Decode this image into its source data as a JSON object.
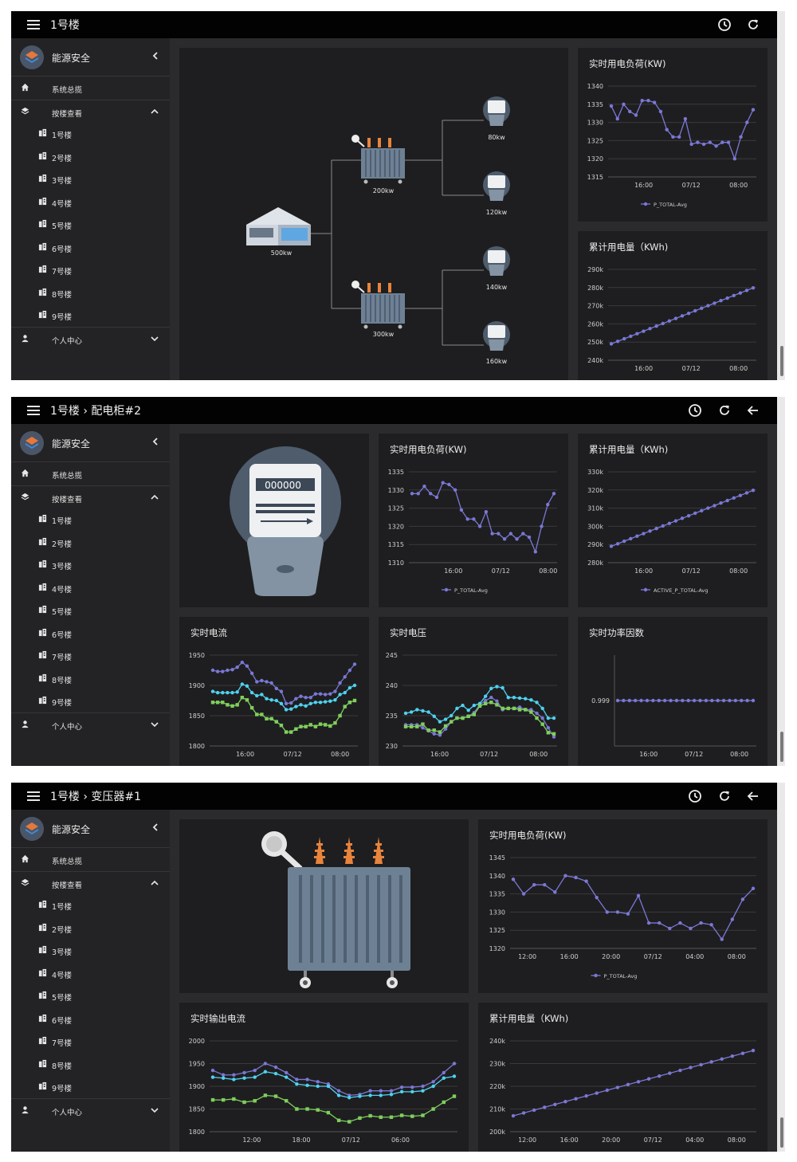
{
  "sidebar": {
    "brand": "能源安全",
    "items": [
      {
        "label": "系统总揽"
      },
      {
        "label": "按楼查看"
      },
      {
        "label": "1号楼"
      },
      {
        "label": "2号楼"
      },
      {
        "label": "3号楼"
      },
      {
        "label": "4号楼"
      },
      {
        "label": "5号楼"
      },
      {
        "label": "6号楼"
      },
      {
        "label": "7号楼"
      },
      {
        "label": "8号楼"
      },
      {
        "label": "9号楼"
      },
      {
        "label": "个人中心"
      }
    ]
  },
  "screens": [
    {
      "title": "1号楼",
      "diagram": {
        "building_label": "500kw",
        "transformers": [
          "200kw",
          "300kw"
        ],
        "meters": [
          "80kw",
          "120kw",
          "140kw",
          "160kw"
        ]
      },
      "panels": {
        "load_title": "实时用电负荷(KW)",
        "energy_title": "累计用电量（KWh)"
      }
    },
    {
      "title": "1号楼 › 配电柜#2",
      "meter_reading": "000000",
      "panels": {
        "load_title": "实时用电负荷(KW)",
        "energy_title": "累计用电量（KWh)",
        "current_title": "实时电流",
        "voltage_title": "实时电压",
        "pf_title": "实时功率因数"
      }
    },
    {
      "title": "1号楼 › 变压器#1",
      "panels": {
        "load_title": "实时用电负荷(KW)",
        "current_title": "实时输出电流",
        "energy_title": "累计用电量（KWh)"
      }
    }
  ],
  "chart_data": [
    {
      "id": "s1_load",
      "type": "line",
      "title": "实时用电负荷(KW)",
      "legend": "P_TOTAL-Avg",
      "y_ticks": [
        "1340",
        "1335",
        "1330",
        "1325",
        "1320",
        "1315"
      ],
      "ylim": [
        1315,
        1340
      ],
      "x_ticks": [
        "16:00",
        "07/12",
        "08:00"
      ],
      "x_tick_pos": [
        0.24,
        0.56,
        0.88
      ],
      "series": [
        {
          "color": "#7b78d6",
          "values": [
            1334.5,
            1331,
            1335,
            1333,
            1332,
            1336,
            1336,
            1335.5,
            1333,
            1328,
            1326,
            1326,
            1331,
            1324,
            1324.5,
            1324,
            1324.5,
            1323.5,
            1324.5,
            1324.5,
            1320,
            1326,
            1330,
            1333.5
          ]
        }
      ]
    },
    {
      "id": "s1_energy",
      "type": "line",
      "title": "累计用电量（KWh)",
      "y_ticks": [
        "290k",
        "280k",
        "270k",
        "260k",
        "250k",
        "240k"
      ],
      "ylim": [
        240000,
        290000
      ],
      "x_ticks": [
        "16:00",
        "07/12",
        "08:00"
      ],
      "x_tick_pos": [
        0.24,
        0.56,
        0.88
      ],
      "series": [
        {
          "color": "#7b78d6",
          "values": [
            249000,
            250400,
            251800,
            253200,
            254600,
            256000,
            257400,
            258800,
            260200,
            261600,
            263000,
            264400,
            265800,
            267200,
            268600,
            270000,
            271400,
            272800,
            274200,
            275600,
            277000,
            278400,
            279800
          ]
        }
      ]
    },
    {
      "id": "s2_load",
      "type": "line",
      "title": "实时用电负荷(KW)",
      "legend": "P_TOTAL-Avg",
      "y_ticks": [
        "1335",
        "1330",
        "1325",
        "1320",
        "1315",
        "1310"
      ],
      "ylim": [
        1310,
        1335
      ],
      "x_ticks": [
        "16:00",
        "07/12",
        "08:00"
      ],
      "x_tick_pos": [
        0.3,
        0.62,
        0.94
      ],
      "series": [
        {
          "color": "#7b78d6",
          "values": [
            1329,
            1329,
            1331,
            1329,
            1328,
            1332,
            1331.5,
            1330,
            1324.5,
            1322,
            1322,
            1320,
            1324,
            1318,
            1318,
            1316.5,
            1318,
            1316.5,
            1318,
            1317,
            1313,
            1320,
            1326,
            1329
          ]
        }
      ]
    },
    {
      "id": "s2_energy",
      "type": "line",
      "title": "累计用电量（KWh)",
      "legend": "ACTIVE_P_TOTAL-Avg",
      "y_ticks": [
        "330k",
        "320k",
        "310k",
        "300k",
        "290k",
        "280k"
      ],
      "ylim": [
        280000,
        330000
      ],
      "x_ticks": [
        "16:00",
        "07/12",
        "08:00"
      ],
      "x_tick_pos": [
        0.24,
        0.56,
        0.88
      ],
      "series": [
        {
          "color": "#7b78d6",
          "values": [
            289000,
            290400,
            291800,
            293200,
            294600,
            296000,
            297400,
            298800,
            300200,
            301600,
            303000,
            304400,
            305800,
            307200,
            308600,
            310000,
            311400,
            312800,
            314200,
            315600,
            317000,
            318400,
            319800
          ]
        }
      ]
    },
    {
      "id": "s2_current",
      "type": "line",
      "title": "实时电流",
      "y_ticks": [
        "1950",
        "1900",
        "1850",
        "1800"
      ],
      "ylim": [
        1800,
        1950
      ],
      "x_ticks": [
        "16:00",
        "07/12",
        "08:00"
      ],
      "x_tick_pos": [
        0.24,
        0.56,
        0.88
      ],
      "series": [
        {
          "color": "#7b78d6",
          "values": [
            1925,
            1923,
            1923,
            1925,
            1926,
            1930,
            1938,
            1932,
            1920,
            1906,
            1908,
            1906,
            1904,
            1895,
            1890,
            1870,
            1871,
            1878,
            1882,
            1880,
            1880,
            1886,
            1886,
            1885,
            1886,
            1890,
            1904,
            1914,
            1925,
            1935
          ]
        },
        {
          "color": "#4fd2f0",
          "values": [
            1890,
            1888,
            1888,
            1888,
            1888,
            1889,
            1902,
            1899,
            1888,
            1883,
            1885,
            1878,
            1876,
            1875,
            1870,
            1860,
            1861,
            1865,
            1868,
            1866,
            1870,
            1872,
            1872,
            1873,
            1874,
            1876,
            1885,
            1888,
            1896,
            1900
          ]
        },
        {
          "color": "#7fcf5c",
          "values": [
            1872,
            1872,
            1872,
            1868,
            1866,
            1868,
            1880,
            1876,
            1863,
            1852,
            1852,
            1845,
            1845,
            1840,
            1834,
            1823,
            1823,
            1828,
            1832,
            1832,
            1835,
            1832,
            1836,
            1835,
            1833,
            1838,
            1850,
            1865,
            1872,
            1875
          ]
        }
      ]
    },
    {
      "id": "s2_voltage",
      "type": "line",
      "title": "实时电压",
      "y_ticks": [
        "245",
        "240",
        "235",
        "230"
      ],
      "ylim": [
        230,
        245
      ],
      "x_ticks": [
        "16:00",
        "07/12",
        "08:00"
      ],
      "x_tick_pos": [
        0.24,
        0.56,
        0.88
      ],
      "series": [
        {
          "color": "#7b78d6",
          "values": [
            233.5,
            233.5,
            233.5,
            233,
            232.5,
            232,
            231.8,
            232.8,
            234,
            234.6,
            234.6,
            234.9,
            235.5,
            236.8,
            237.5,
            238,
            237.4,
            236,
            236.2,
            236.2,
            236.4,
            236,
            236,
            235.4,
            234.6,
            233,
            231.5
          ]
        },
        {
          "color": "#4fd2f0",
          "values": [
            235.4,
            235.6,
            236,
            235.8,
            235.6,
            234.9,
            234,
            234.4,
            235,
            236.2,
            236.7,
            235.9,
            236.7,
            237,
            238.2,
            239.5,
            239.8,
            239.6,
            238,
            238,
            237.9,
            237.8,
            237.6,
            237.2,
            236.2,
            234.6,
            234.6
          ]
        },
        {
          "color": "#7fcf5c",
          "values": [
            233.2,
            233.2,
            233.2,
            233.6,
            232.6,
            232.6,
            232.3,
            233.3,
            234,
            234.6,
            234.6,
            234.9,
            235.2,
            236.6,
            237,
            237.2,
            236.8,
            236.2,
            236.2,
            236.2,
            236,
            236,
            235.6,
            234.6,
            233.6,
            232.2,
            232
          ]
        }
      ]
    },
    {
      "id": "s2_pf",
      "type": "line",
      "title": "实时功率因数",
      "y_ticks": [
        "0.999"
      ],
      "ylim": [
        0.998,
        1.0
      ],
      "x_ticks": [
        "16:00",
        "07/12",
        "08:00"
      ],
      "x_tick_pos": [
        0.24,
        0.56,
        0.88
      ],
      "series": [
        {
          "color": "#7b78d6",
          "values": [
            0.999,
            0.999,
            0.999,
            0.999,
            0.999,
            0.999,
            0.999,
            0.999,
            0.999,
            0.999,
            0.999,
            0.999,
            0.999,
            0.999,
            0.999,
            0.999,
            0.999,
            0.999,
            0.999,
            0.999,
            0.999,
            0.999,
            0.999,
            0.999
          ]
        }
      ]
    },
    {
      "id": "s3_load",
      "type": "line",
      "title": "实时用电负荷(KW)",
      "legend": "P_TOTAL-Avg",
      "y_ticks": [
        "1345",
        "1340",
        "1335",
        "1330",
        "1325",
        "1320"
      ],
      "ylim": [
        1320,
        1345
      ],
      "x_ticks": [
        "12:00",
        "16:00",
        "20:00",
        "07/12",
        "04:00",
        "08:00"
      ],
      "x_tick_pos": [
        0.07,
        0.24,
        0.41,
        0.58,
        0.75,
        0.92
      ],
      "series": [
        {
          "color": "#7b78d6",
          "values": [
            1339,
            1335,
            1337.5,
            1337.5,
            1335.5,
            1340,
            1339.5,
            1338.5,
            1334,
            1330,
            1330,
            1329.5,
            1334.5,
            1327,
            1327,
            1325.5,
            1327,
            1325.5,
            1327,
            1326.5,
            1322.5,
            1328,
            1333.5,
            1336.5
          ]
        }
      ]
    },
    {
      "id": "s3_current",
      "type": "line",
      "title": "实时输出电流",
      "y_ticks": [
        "2000",
        "1950",
        "1900",
        "1850",
        "1800"
      ],
      "ylim": [
        1800,
        2000
      ],
      "x_ticks": [
        "12:00",
        "18:00",
        "07/12",
        "06:00"
      ],
      "x_tick_pos": [
        0.17,
        0.37,
        0.57,
        0.77
      ],
      "series": [
        {
          "color": "#7b78d6",
          "values": [
            1935,
            1925,
            1925,
            1930,
            1935,
            1950,
            1942,
            1930,
            1915,
            1915,
            1910,
            1905,
            1890,
            1880,
            1882,
            1890,
            1890,
            1890,
            1898,
            1898,
            1900,
            1910,
            1930,
            1950
          ]
        },
        {
          "color": "#4fd2f0",
          "values": [
            1920,
            1918,
            1915,
            1918,
            1920,
            1932,
            1928,
            1920,
            1905,
            1902,
            1900,
            1900,
            1880,
            1875,
            1878,
            1880,
            1880,
            1882,
            1888,
            1888,
            1890,
            1900,
            1918,
            1922
          ]
        },
        {
          "color": "#7fcf5c",
          "values": [
            1870,
            1870,
            1872,
            1865,
            1868,
            1880,
            1878,
            1868,
            1850,
            1850,
            1848,
            1842,
            1825,
            1822,
            1830,
            1835,
            1832,
            1832,
            1836,
            1834,
            1836,
            1850,
            1865,
            1878
          ]
        }
      ]
    },
    {
      "id": "s3_energy",
      "type": "line",
      "title": "累计用电量（KWh)",
      "y_ticks": [
        "240k",
        "230k",
        "220k",
        "210k",
        "200k"
      ],
      "ylim": [
        200000,
        240000
      ],
      "x_ticks": [
        "12:00",
        "16:00",
        "20:00",
        "07/12",
        "04:00",
        "08:00"
      ],
      "x_tick_pos": [
        0.07,
        0.24,
        0.41,
        0.58,
        0.75,
        0.92
      ],
      "series": [
        {
          "color": "#7b78d6",
          "values": [
            207000,
            208250,
            209500,
            210750,
            212000,
            213250,
            214500,
            215750,
            217000,
            218250,
            219500,
            220750,
            222000,
            223250,
            224500,
            225750,
            227000,
            228250,
            229500,
            230750,
            232000,
            233250,
            234500,
            235750
          ]
        }
      ]
    }
  ],
  "colors": {
    "accent": "#7b78d6",
    "cyan": "#4fd2f0",
    "green": "#7fcf5c",
    "panel": "#1e1e20",
    "bg": "#2b2b2d",
    "topbar": "#020202"
  }
}
